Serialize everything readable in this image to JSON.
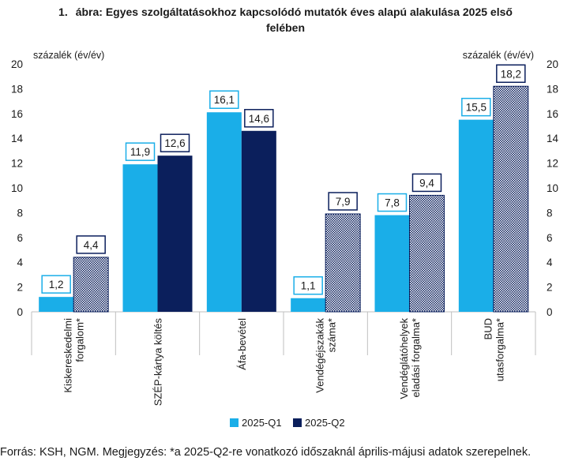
{
  "figure": {
    "number": "1.",
    "title_line1": "ábra: Egyes szolgáltatásokhoz kapcsolódó mutatók éves alapú alakulása 2025 első",
    "title_line2": "felében",
    "source_note": "Forrás: KSH, NGM. Megjegyzés: *a 2025-Q2-re vonatkozó időszaknál április-májusi adatok szerepelnek."
  },
  "chart_data": {
    "type": "bar",
    "title": "Egyes szolgáltatásokhoz kapcsolódó mutatók éves alapú alakulása 2025 első felében",
    "ylabel_left": "százalék (év/év)",
    "ylabel_right": "százalék (év/év)",
    "ylim": [
      0,
      20
    ],
    "yticks": [
      0,
      2,
      4,
      6,
      8,
      10,
      12,
      14,
      16,
      18,
      20
    ],
    "grid": false,
    "legend_position": "bottom",
    "categories": [
      [
        "Kiskereskedelmi",
        "forgalom*"
      ],
      [
        "SZÉP-kártya költés"
      ],
      [
        "Áfa-bevétel"
      ],
      [
        "Vendégéjszakák",
        "száma*"
      ],
      [
        "Vendéglátóhelyek",
        "eladási forgalma*"
      ],
      [
        "BUD",
        "utasforgalma*"
      ]
    ],
    "series": [
      {
        "name": "2025-Q1",
        "color": "#1aaee8",
        "values": [
          1.2,
          11.9,
          16.1,
          1.1,
          7.8,
          15.5
        ],
        "labels": [
          "1,2",
          "11,9",
          "16,1",
          "1,1",
          "7,8",
          "15,5"
        ]
      },
      {
        "name": "2025-Q2",
        "color": "#0b1f5c",
        "values": [
          4.4,
          12.6,
          14.6,
          7.9,
          9.4,
          18.2
        ],
        "labels": [
          "4,4",
          "12,6",
          "14,6",
          "7,9",
          "9,4",
          "18,2"
        ],
        "hatched": [
          true,
          false,
          false,
          true,
          true,
          true
        ]
      }
    ]
  }
}
